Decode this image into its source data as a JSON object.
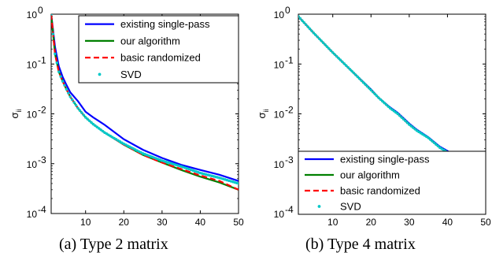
{
  "chart_data": [
    {
      "type": "line",
      "panel": "a",
      "caption": "(a)  Type 2 matrix",
      "ylabel": "σ",
      "ylabel_sub": "ii",
      "xlabel": "",
      "yscale": "log",
      "xlim": [
        1,
        50
      ],
      "ylim": [
        0.0001,
        1
      ],
      "x_ticks": [
        10,
        20,
        30,
        40,
        50
      ],
      "y_ticks": [
        0.0001,
        0.001,
        0.01,
        0.1,
        1
      ],
      "y_tick_labels": [
        {
          "base": "10",
          "exp": "-4"
        },
        {
          "base": "10",
          "exp": "-3"
        },
        {
          "base": "10",
          "exp": "-2"
        },
        {
          "base": "10",
          "exp": "-1"
        },
        {
          "base": "10",
          "exp": "0"
        }
      ],
      "legend_position": "top-right",
      "x": [
        1,
        2,
        3,
        4,
        5,
        6,
        8,
        10,
        12,
        15,
        20,
        25,
        30,
        35,
        40,
        45,
        50
      ],
      "series": [
        {
          "name": "existing single-pass",
          "color": "#0000ff",
          "style": "solid",
          "values": [
            1.0,
            0.22,
            0.09,
            0.055,
            0.038,
            0.027,
            0.018,
            0.011,
            0.0085,
            0.006,
            0.0031,
            0.0019,
            0.0013,
            0.00095,
            0.00075,
            0.0006,
            0.00045
          ]
        },
        {
          "name": "our algorithm",
          "color": "#008000",
          "style": "solid",
          "values": [
            1.0,
            0.16,
            0.07,
            0.045,
            0.031,
            0.022,
            0.013,
            0.0085,
            0.0062,
            0.0042,
            0.0024,
            0.0015,
            0.00105,
            0.00075,
            0.00055,
            0.00042,
            0.0003
          ]
        },
        {
          "name": "basic randomized",
          "color": "#ff0000",
          "style": "dashed",
          "values": [
            1.0,
            0.16,
            0.07,
            0.045,
            0.031,
            0.022,
            0.013,
            0.0085,
            0.0062,
            0.0042,
            0.0024,
            0.0015,
            0.00105,
            0.00078,
            0.00058,
            0.00045,
            0.0003
          ]
        },
        {
          "name": "SVD",
          "color": "#00c8c8",
          "style": "dots",
          "values": [
            1.0,
            0.16,
            0.07,
            0.045,
            0.031,
            0.022,
            0.013,
            0.0085,
            0.0062,
            0.0042,
            0.0025,
            0.0016,
            0.00115,
            0.00088,
            0.00065,
            0.00052,
            0.0004
          ]
        }
      ]
    },
    {
      "type": "line",
      "panel": "b",
      "caption": "(b)  Type 4 matrix",
      "ylabel": "σ",
      "ylabel_sub": "ii",
      "xlabel": "",
      "yscale": "log",
      "xlim": [
        1,
        50
      ],
      "ylim": [
        0.0001,
        1
      ],
      "x_ticks": [
        10,
        20,
        30,
        40,
        50
      ],
      "y_ticks": [
        0.0001,
        0.001,
        0.01,
        0.1,
        1
      ],
      "y_tick_labels": [
        {
          "base": "10",
          "exp": "-4"
        },
        {
          "base": "10",
          "exp": "-3"
        },
        {
          "base": "10",
          "exp": "-2"
        },
        {
          "base": "10",
          "exp": "-1"
        },
        {
          "base": "10",
          "exp": "0"
        }
      ],
      "legend_position": "bottom-right",
      "x": [
        1,
        5,
        10,
        15,
        20,
        22,
        25,
        27,
        30,
        32,
        35,
        38,
        40,
        42,
        45,
        48,
        50
      ],
      "series": [
        {
          "name": "existing single-pass",
          "color": "#0000ff",
          "style": "solid",
          "values": [
            0.9,
            0.42,
            0.17,
            0.072,
            0.031,
            0.021,
            0.0135,
            0.0105,
            0.0064,
            0.0048,
            0.0034,
            0.0022,
            0.0018,
            0.0014,
            0.0011,
            0.00085,
            0.00065
          ]
        },
        {
          "name": "our algorithm",
          "color": "#008000",
          "style": "solid",
          "values": [
            0.9,
            0.42,
            0.17,
            0.072,
            0.03,
            0.021,
            0.013,
            0.01,
            0.0061,
            0.0046,
            0.0033,
            0.0021,
            0.0017,
            0.0013,
            0.001,
            0.00078,
            0.00058
          ]
        },
        {
          "name": "basic randomized",
          "color": "#ff0000",
          "style": "dashed",
          "values": [
            0.9,
            0.42,
            0.17,
            0.072,
            0.03,
            0.021,
            0.013,
            0.01,
            0.0061,
            0.0046,
            0.0033,
            0.0021,
            0.0017,
            0.0013,
            0.001,
            0.00078,
            0.00058
          ]
        },
        {
          "name": "SVD",
          "color": "#00c8c8",
          "style": "dots",
          "values": [
            0.9,
            0.42,
            0.17,
            0.072,
            0.03,
            0.021,
            0.013,
            0.01,
            0.0061,
            0.0046,
            0.0033,
            0.0021,
            0.0017,
            0.0013,
            0.001,
            0.00078,
            0.00058
          ]
        }
      ]
    }
  ]
}
